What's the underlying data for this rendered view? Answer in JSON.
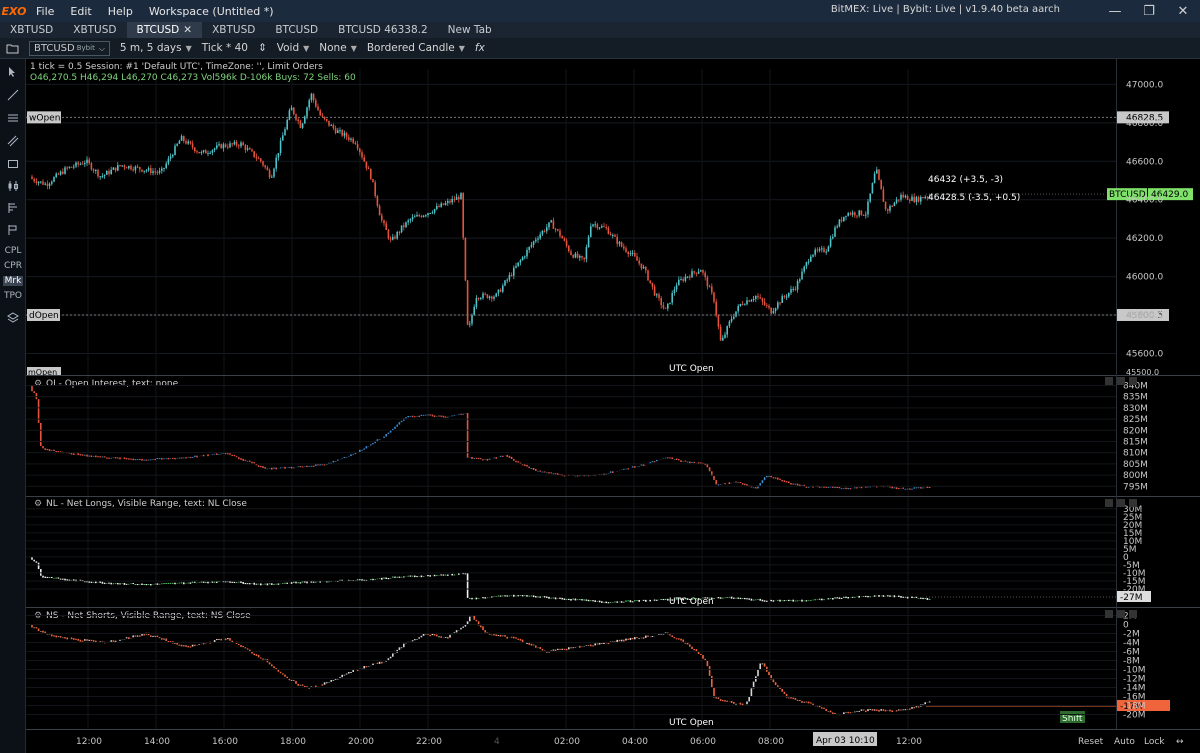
{
  "titlebar": {
    "logo": "EXO",
    "menus": [
      "File",
      "Edit",
      "Help",
      "Workspace (Untitled *)"
    ],
    "status": "BitMEX: Live  |  Bybit: Live  |  v1.9.40 beta aarch"
  },
  "tabs": [
    {
      "label": "XBTUSD"
    },
    {
      "label": "XBTUSD"
    },
    {
      "label": "BTCUSD",
      "active": true
    },
    {
      "label": "XBTUSD"
    },
    {
      "label": "BTCUSD"
    },
    {
      "label": "BTCUSD 46338.2"
    },
    {
      "label": "New Tab"
    }
  ],
  "toolbar": {
    "symbol": "BTCUSD",
    "exchange": "Bybit",
    "timeframe": "5 m, 5 days",
    "tick": "Tick * 40",
    "mode1": "Void",
    "mode2": "None",
    "candle": "Bordered Candle",
    "fx": "fx"
  },
  "left_tools": [
    "CPL",
    "CPR",
    "Mrk",
    "TPO"
  ],
  "price_pane": {
    "info1": "1 tick = 0.5 Session: #1 'Default UTC', TimeZone: '',  Limit Orders",
    "info2": "O46,270.5 H46,294 L46,270 C46,273  Vol596k  D-106k  Buys: 72 Sells: 60",
    "axis_labels": [
      "47000.0",
      "46800.0",
      "46600.0",
      "46400.0",
      "46200.0",
      "46000.0",
      "45800.0",
      "45600.0"
    ],
    "y_min": 45530,
    "y_max": 47080,
    "wopen_label": "wOpen",
    "wopen_value": "46828.5",
    "wopen_price": 46828.5,
    "dopen_label": "dOpen",
    "dopen_value": "45800.5",
    "dopen_price": 45800.5,
    "last_symbol": "BTCUSD",
    "last_value": "46429.0",
    "last_price": 46429.0,
    "tip1": "46432 (+3.5, -3)",
    "tip2": "46428.5 (-3.5, +0.5)",
    "utc_open": "UTC Open",
    "bottom_marker": "mOpen",
    "bottom_value": "45500.0"
  },
  "oi_pane": {
    "title": "OI - Open Interest, text: none",
    "axis_labels": [
      "840M",
      "835M",
      "830M",
      "825M",
      "820M",
      "815M",
      "810M",
      "805M",
      "800M",
      "795M"
    ]
  },
  "nl_pane": {
    "title": "NL - Net Longs, Visible Range, text: NL Close",
    "axis_labels": [
      "30M",
      "25M",
      "20M",
      "15M",
      "10M",
      "5M",
      "0",
      "-5M",
      "-10M",
      "-15M",
      "-20M"
    ],
    "last_value": "-27M",
    "utc_open": "UTC Open"
  },
  "ns_pane": {
    "title": "NS - Net Shorts, Visible Range, text: NS Close",
    "axis_labels": [
      "2M",
      "0",
      "-2M",
      "-4M",
      "-6M",
      "-8M",
      "-10M",
      "-12M",
      "-14M",
      "-16M",
      "-18M",
      "-20M"
    ],
    "last_value": "-17M",
    "utc_open": "UTC Open",
    "shift": "Shift"
  },
  "time_axis": {
    "labels": [
      "12:00",
      "14:00",
      "16:00",
      "18:00",
      "20:00",
      "22:00",
      "02:00",
      "04:00",
      "06:00",
      "08:00",
      "12:00"
    ],
    "day_marker": "4",
    "cursor_time": "Apr 03 10:10",
    "reset": "Reset",
    "auto": "Auto",
    "lock": "Lock"
  },
  "colors": {
    "up": "#4fc3c9",
    "down": "#e5533d",
    "oi_up": "#3b8fd6",
    "nl_up": "#5bd46a",
    "ns_up": "#d8d8d8",
    "last_green": "#7fe06a",
    "ns_orange": "#f0643c",
    "accent": "#ff6a00"
  }
}
